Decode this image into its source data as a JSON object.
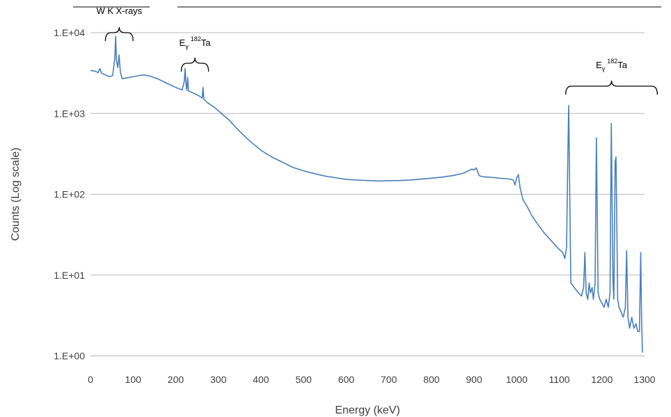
{
  "chart_data": {
    "type": "line",
    "title": "",
    "xlabel": "Energy (keV)",
    "ylabel": "Counts (Log scale)",
    "xlim": [
      0,
      1300
    ],
    "ylim": [
      1,
      10000
    ],
    "y_scale": "log",
    "grid": "horizontal",
    "legend": "none",
    "x_ticks": [
      0,
      100,
      200,
      300,
      400,
      500,
      600,
      700,
      800,
      900,
      1000,
      1100,
      1200,
      1300
    ],
    "y_ticks": [
      {
        "value": 1,
        "label": "1.E+00"
      },
      {
        "value": 10,
        "label": "1.E+01"
      },
      {
        "value": 100,
        "label": "1.E+02"
      },
      {
        "value": 1000,
        "label": "1.E+03"
      },
      {
        "value": 10000,
        "label": "1.E+04"
      }
    ],
    "annotations": [
      {
        "text": "W K X-rays",
        "range": [
          35,
          100
        ]
      },
      {
        "text_main": "E",
        "text_sub": "γ",
        "text_sup": "182",
        "text_tail": "Ta",
        "range": [
          213,
          277
        ]
      },
      {
        "text_main": "E",
        "text_sub": "γ",
        "text_sup": "182",
        "text_tail": "Ta",
        "range": [
          1115,
          1330
        ]
      }
    ],
    "series": [
      {
        "color": "#4a7ebb",
        "points": [
          [
            0,
            3400
          ],
          [
            10,
            3350
          ],
          [
            18,
            3200
          ],
          [
            22,
            3600
          ],
          [
            26,
            3150
          ],
          [
            35,
            3000
          ],
          [
            45,
            2850
          ],
          [
            52,
            2950
          ],
          [
            57,
            4800
          ],
          [
            59,
            9000
          ],
          [
            61,
            4500
          ],
          [
            64,
            3700
          ],
          [
            67,
            5300
          ],
          [
            70,
            3300
          ],
          [
            74,
            2700
          ],
          [
            85,
            2750
          ],
          [
            100,
            2850
          ],
          [
            115,
            2950
          ],
          [
            125,
            3000
          ],
          [
            140,
            2900
          ],
          [
            160,
            2650
          ],
          [
            180,
            2350
          ],
          [
            200,
            2100
          ],
          [
            215,
            1950
          ],
          [
            220,
            2500
          ],
          [
            222,
            3600
          ],
          [
            224,
            2300
          ],
          [
            226,
            1950
          ],
          [
            228,
            2800
          ],
          [
            230,
            1900
          ],
          [
            235,
            1850
          ],
          [
            245,
            1750
          ],
          [
            255,
            1650
          ],
          [
            262,
            1550
          ],
          [
            264,
            2100
          ],
          [
            266,
            1500
          ],
          [
            275,
            1350
          ],
          [
            290,
            1200
          ],
          [
            300,
            1080
          ],
          [
            325,
            830
          ],
          [
            350,
            600
          ],
          [
            375,
            450
          ],
          [
            400,
            350
          ],
          [
            425,
            290
          ],
          [
            450,
            250
          ],
          [
            475,
            215
          ],
          [
            500,
            195
          ],
          [
            525,
            180
          ],
          [
            550,
            168
          ],
          [
            575,
            160
          ],
          [
            600,
            153
          ],
          [
            625,
            150
          ],
          [
            650,
            148
          ],
          [
            675,
            146
          ],
          [
            700,
            147
          ],
          [
            725,
            148
          ],
          [
            750,
            150
          ],
          [
            775,
            154
          ],
          [
            800,
            158
          ],
          [
            825,
            163
          ],
          [
            850,
            170
          ],
          [
            875,
            182
          ],
          [
            895,
            205
          ],
          [
            900,
            200
          ],
          [
            905,
            212
          ],
          [
            912,
            170
          ],
          [
            920,
            165
          ],
          [
            940,
            162
          ],
          [
            960,
            158
          ],
          [
            980,
            155
          ],
          [
            992,
            150
          ],
          [
            996,
            130
          ],
          [
            1000,
            160
          ],
          [
            1004,
            175
          ],
          [
            1008,
            120
          ],
          [
            1015,
            85
          ],
          [
            1025,
            70
          ],
          [
            1035,
            55
          ],
          [
            1050,
            42
          ],
          [
            1065,
            33
          ],
          [
            1080,
            27
          ],
          [
            1095,
            22
          ],
          [
            1108,
            19
          ],
          [
            1113,
            16
          ],
          [
            1117,
            22
          ],
          [
            1120,
            300
          ],
          [
            1122,
            1250
          ],
          [
            1125,
            60
          ],
          [
            1127,
            8
          ],
          [
            1135,
            7
          ],
          [
            1145,
            6
          ],
          [
            1152,
            5.5
          ],
          [
            1157,
            7
          ],
          [
            1160,
            19
          ],
          [
            1163,
            6
          ],
          [
            1167,
            5
          ],
          [
            1170,
            8
          ],
          [
            1173,
            6
          ],
          [
            1177,
            7
          ],
          [
            1180,
            5
          ],
          [
            1184,
            8
          ],
          [
            1187,
            500
          ],
          [
            1189,
            60
          ],
          [
            1191,
            6
          ],
          [
            1195,
            5
          ],
          [
            1200,
            4.5
          ],
          [
            1205,
            4
          ],
          [
            1210,
            5
          ],
          [
            1215,
            4
          ],
          [
            1219,
            6
          ],
          [
            1222,
            750
          ],
          [
            1224,
            70
          ],
          [
            1226,
            8
          ],
          [
            1228,
            5
          ],
          [
            1231,
            250
          ],
          [
            1233,
            290
          ],
          [
            1235,
            40
          ],
          [
            1237,
            5
          ],
          [
            1240,
            4
          ],
          [
            1245,
            3.5
          ],
          [
            1250,
            3
          ],
          [
            1255,
            4
          ],
          [
            1258,
            20
          ],
          [
            1261,
            3
          ],
          [
            1265,
            2.2
          ],
          [
            1270,
            3
          ],
          [
            1275,
            2.2
          ],
          [
            1280,
            2.5
          ],
          [
            1284,
            2
          ],
          [
            1288,
            2
          ],
          [
            1291,
            19
          ],
          [
            1293,
            3
          ],
          [
            1295,
            1.1
          ]
        ]
      }
    ]
  }
}
